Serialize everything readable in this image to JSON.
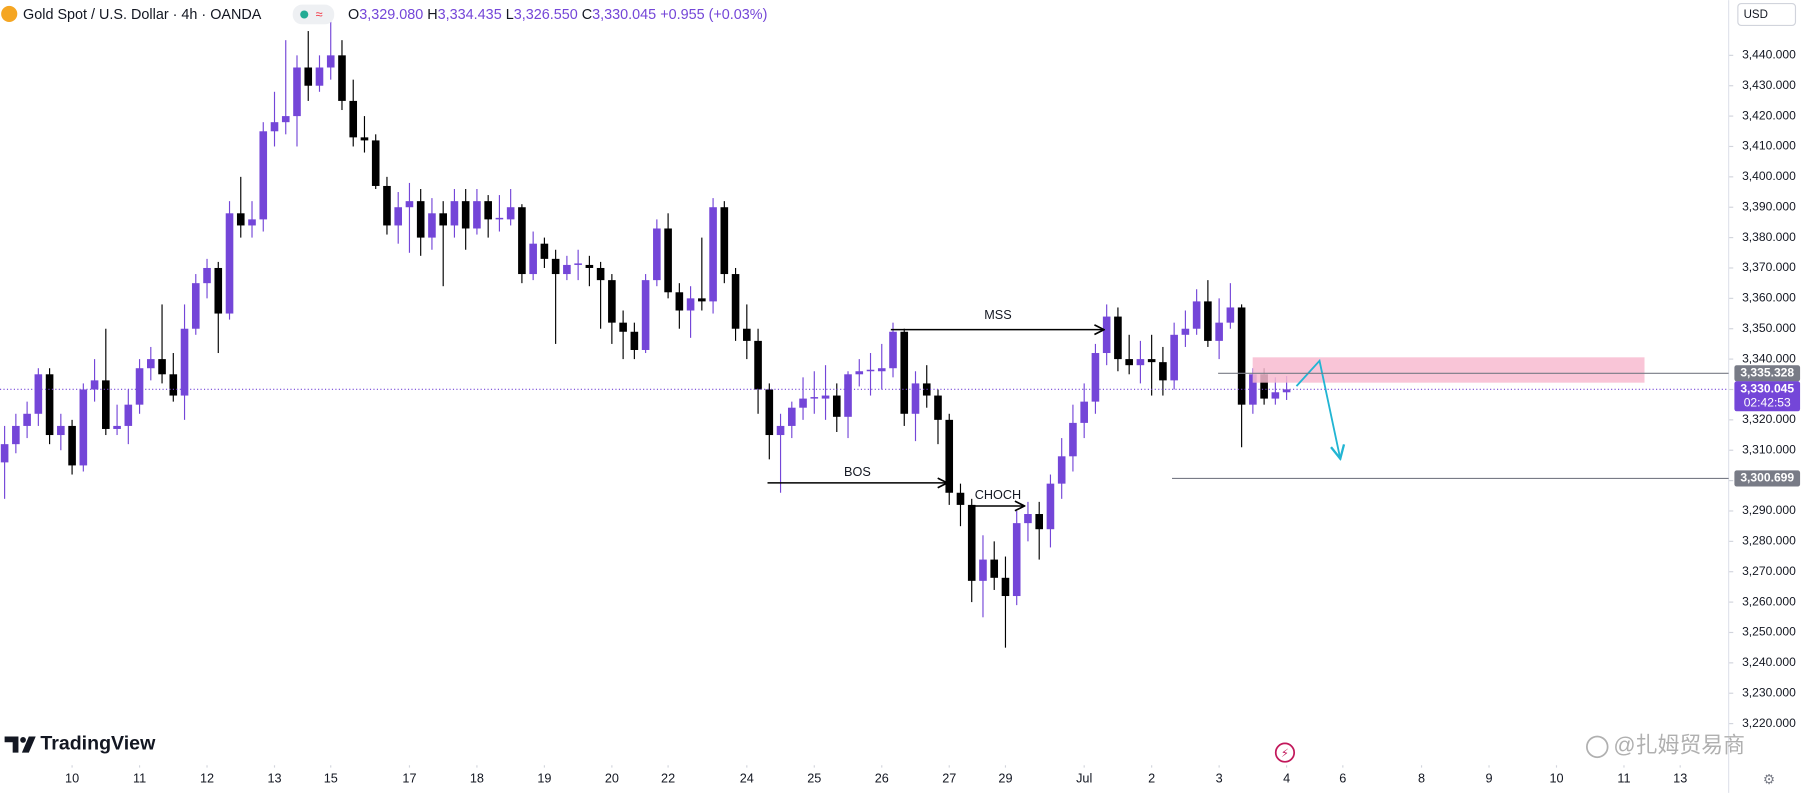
{
  "header": {
    "title": "Gold Spot / U.S. Dollar · 4h · OANDA",
    "ohlc": [
      {
        "key": "O",
        "text": "3,329.080"
      },
      {
        "key": "H",
        "text": "3,334.435"
      },
      {
        "key": "L",
        "text": "3,326.550"
      },
      {
        "key": "C",
        "text": "3,330.045"
      }
    ],
    "change": "+0.955 (+0.03%)",
    "currency": "USD"
  },
  "branding": {
    "logo": "TradingView",
    "watermark": "@扎姆贸易商"
  },
  "chart_data": {
    "type": "candlestick",
    "up_color": "#7446d8",
    "down_color": "#000000",
    "open": [
      3306,
      3312,
      3318,
      3322,
      3335,
      3315,
      3318,
      3305,
      3330,
      3333,
      3317,
      3318,
      3325,
      3337,
      3340,
      3335,
      3328,
      3350,
      3365,
      3370,
      3355,
      3388,
      3384,
      3386,
      3415,
      3418,
      3420,
      3436,
      3430,
      3436,
      3440,
      3425,
      3413,
      3412,
      3397,
      3384,
      3390,
      3392,
      3380,
      3388,
      3384,
      3392,
      3383,
      3392,
      3386,
      3386,
      3390,
      3368,
      3378,
      3373,
      3368,
      3371,
      3371,
      3370,
      3366,
      3352,
      3349,
      3343,
      3366,
      3383,
      3362,
      3356,
      3360,
      3359,
      3390,
      3368,
      3350,
      3346,
      3330,
      3315,
      3318,
      3324,
      3327,
      3327,
      3328,
      3321,
      3335,
      3336,
      3336,
      3337,
      3349,
      3322,
      3332,
      3328,
      3320,
      3296,
      3292,
      3267,
      3274,
      3268,
      3262,
      3286,
      3289,
      3284,
      3299,
      3308,
      3319,
      3326,
      3342,
      3354,
      3340,
      3338,
      3340,
      3339,
      3333,
      3348,
      3350,
      3359,
      3346,
      3352,
      3357,
      3325,
      3335,
      3327,
      3329.08
    ],
    "high": [
      3318,
      3322,
      3326,
      3337,
      3337,
      3322,
      3320,
      3332,
      3340,
      3350,
      3325,
      3330,
      3340,
      3344,
      3358,
      3342,
      3358,
      3368,
      3373,
      3372,
      3392,
      3400,
      3392,
      3418,
      3428,
      3445,
      3440,
      3448,
      3440,
      3452,
      3445,
      3432,
      3420,
      3414,
      3400,
      3395,
      3398,
      3396,
      3393,
      3392,
      3396,
      3396,
      3396,
      3394,
      3394,
      3396,
      3391,
      3382,
      3380,
      3376,
      3374,
      3376,
      3374,
      3372,
      3368,
      3356,
      3352,
      3368,
      3386,
      3388,
      3365,
      3364,
      3380,
      3393,
      3392,
      3370,
      3358,
      3350,
      3332,
      3322,
      3326,
      3334,
      3336,
      3338,
      3332,
      3336,
      3340,
      3342,
      3345,
      3352,
      3350,
      3336,
      3338,
      3330,
      3322,
      3299,
      3294,
      3282,
      3280,
      3275,
      3290,
      3293,
      3293,
      3302,
      3314,
      3325,
      3332,
      3345,
      3358,
      3357,
      3348,
      3346,
      3348,
      3344,
      3352,
      3356,
      3363,
      3366,
      3360,
      3365,
      3358,
      3337,
      3337,
      3334,
      3334.435
    ],
    "low": [
      3294,
      3309,
      3314,
      3318,
      3312,
      3310,
      3302,
      3303,
      3326,
      3315,
      3315,
      3312,
      3322,
      3333,
      3332,
      3326,
      3320,
      3348,
      3360,
      3342,
      3353,
      3380,
      3380,
      3382,
      3410,
      3414,
      3410,
      3425,
      3428,
      3432,
      3422,
      3410,
      3408,
      3396,
      3381,
      3378,
      3375,
      3374,
      3376,
      3364,
      3380,
      3376,
      3381,
      3380,
      3382,
      3384,
      3365,
      3366,
      3370,
      3345,
      3366,
      3366,
      3364,
      3350,
      3345,
      3340,
      3340,
      3342,
      3364,
      3360,
      3350,
      3347,
      3356,
      3355,
      3365,
      3346,
      3340,
      3322,
      3307,
      3296,
      3314,
      3320,
      3322,
      3320,
      3316,
      3314,
      3331,
      3328,
      3330,
      3334,
      3318,
      3313,
      3324,
      3312,
      3292,
      3285,
      3260,
      3255,
      3264,
      3245,
      3259,
      3280,
      3274,
      3278,
      3294,
      3303,
      3314,
      3322,
      3338,
      3336,
      3335,
      3332,
      3328,
      3328,
      3330,
      3344,
      3348,
      3344,
      3340,
      3350,
      3311,
      3322,
      3325,
      3325,
      3326.55
    ],
    "close": [
      3312,
      3318,
      3322,
      3335,
      3315,
      3318,
      3305,
      3330,
      3333,
      3317,
      3318,
      3325,
      3337,
      3340,
      3335,
      3328,
      3350,
      3365,
      3370,
      3355,
      3388,
      3384,
      3386,
      3415,
      3418,
      3420,
      3436,
      3430,
      3436,
      3440,
      3425,
      3413,
      3412,
      3397,
      3384,
      3390,
      3392,
      3380,
      3388,
      3384,
      3392,
      3383,
      3392,
      3386,
      3386.5,
      3390,
      3368,
      3378,
      3373,
      3368,
      3371,
      3371.5,
      3370,
      3366,
      3352,
      3349,
      3343,
      3366,
      3383,
      3362,
      3356,
      3360,
      3359,
      3390,
      3368,
      3350,
      3346,
      3330,
      3315,
      3318,
      3324,
      3327,
      3327.5,
      3328,
      3321,
      3335,
      3336,
      3336.5,
      3337,
      3349,
      3322,
      3332,
      3328,
      3320,
      3296,
      3292,
      3267,
      3274,
      3268,
      3262,
      3286,
      3289,
      3284,
      3299,
      3308,
      3319,
      3326,
      3342,
      3354,
      3340,
      3338,
      3340,
      3339,
      3333,
      3348,
      3350,
      3359,
      3346,
      3352,
      3357,
      3325,
      3335,
      3327,
      3329.08,
      3330.045
    ],
    "xlim": [
      -0.41,
      153
    ],
    "xticks": [
      {
        "value": 6,
        "label": "10"
      },
      {
        "value": 12,
        "label": "11"
      },
      {
        "value": 18,
        "label": "12"
      },
      {
        "value": 24,
        "label": "13"
      },
      {
        "value": 29,
        "label": "15"
      },
      {
        "value": 36,
        "label": "17"
      },
      {
        "value": 42,
        "label": "18"
      },
      {
        "value": 48,
        "label": "19"
      },
      {
        "value": 54,
        "label": "20"
      },
      {
        "value": 59,
        "label": "22"
      },
      {
        "value": 66,
        "label": "24"
      },
      {
        "value": 72,
        "label": "25"
      },
      {
        "value": 78,
        "label": "26"
      },
      {
        "value": 84,
        "label": "27"
      },
      {
        "value": 89,
        "label": "29"
      },
      {
        "value": 96,
        "label": "Jul"
      },
      {
        "value": 102,
        "label": "2"
      },
      {
        "value": 108,
        "label": "3"
      },
      {
        "value": 114,
        "label": "4"
      },
      {
        "value": 119,
        "label": "6"
      },
      {
        "value": 126,
        "label": "8"
      },
      {
        "value": 132,
        "label": "9"
      },
      {
        "value": 138,
        "label": "10"
      },
      {
        "value": 144,
        "label": "11"
      },
      {
        "value": 149,
        "label": "13"
      }
    ],
    "ylim": [
      3207.8,
      3458.2
    ],
    "yticks": [
      {
        "value": 3220,
        "label": "3,220.000"
      },
      {
        "value": 3230,
        "label": "3,230.000"
      },
      {
        "value": 3240,
        "label": "3,240.000"
      },
      {
        "value": 3250,
        "label": "3,250.000"
      },
      {
        "value": 3260,
        "label": "3,260.000"
      },
      {
        "value": 3270,
        "label": "3,270.000"
      },
      {
        "value": 3280,
        "label": "3,280.000"
      },
      {
        "value": 3290,
        "label": "3,290.000"
      },
      {
        "value": 3300,
        "label": "3,300.000"
      },
      {
        "value": 3310,
        "label": "3,310.000"
      },
      {
        "value": 3320,
        "label": "3,320.000"
      },
      {
        "value": 3330,
        "label": "3,330.000"
      },
      {
        "value": 3340,
        "label": "3,340.000"
      },
      {
        "value": 3350,
        "label": "3,350.000"
      },
      {
        "value": 3360,
        "label": "3,360.000"
      },
      {
        "value": 3370,
        "label": "3,370.000"
      },
      {
        "value": 3380,
        "label": "3,380.000"
      },
      {
        "value": 3390,
        "label": "3,390.000"
      },
      {
        "value": 3400,
        "label": "3,400.000"
      },
      {
        "value": 3410,
        "label": "3,410.000"
      },
      {
        "value": 3420,
        "label": "3,420.000"
      },
      {
        "value": 3430,
        "label": "3,430.000"
      },
      {
        "value": 3440,
        "label": "3,440.000"
      }
    ],
    "grid": false,
    "price_lines": [
      {
        "value": 3335.328,
        "label": "3,335.328",
        "color": "#787b86"
      },
      {
        "value": 3330.045,
        "label": "3,330.045",
        "sublabel": "02:42:53",
        "color": "#7446d8"
      },
      {
        "value": 3300.699,
        "label": "3,300.699",
        "color": "#787b86"
      }
    ],
    "annotations": [
      "MSS",
      "BOS",
      "CHOCH"
    ]
  }
}
